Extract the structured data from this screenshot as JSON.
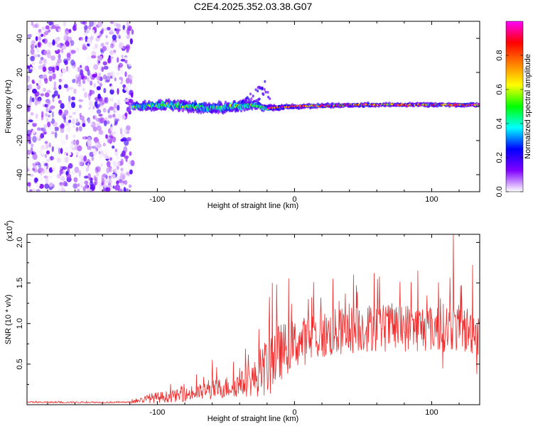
{
  "chart_data": [
    {
      "type": "heatmap",
      "title": "C2E4.2025.352.03.38.G07",
      "xlabel": "Height of straight line (km)",
      "ylabel": "Frequency (Hz)",
      "xlim": [
        -195,
        135
      ],
      "ylim": [
        -50,
        50
      ],
      "xticks": [
        -100,
        0,
        100
      ],
      "xtick_labels": [
        "-100",
        "0",
        "100"
      ],
      "yticks": [
        -40,
        -20,
        0,
        20,
        40
      ],
      "ytick_labels": [
        "-40",
        "-20",
        "0",
        "20",
        "40"
      ],
      "noise_region_x": [
        -195,
        -118
      ],
      "signal_track": [
        {
          "x": -118,
          "freq": 0,
          "spread": 3.5
        },
        {
          "x": -90,
          "freq": 1,
          "spread": 4.0
        },
        {
          "x": -60,
          "freq": -1,
          "spread": 4.5
        },
        {
          "x": -30,
          "freq": 1,
          "spread": 4.0
        },
        {
          "x": -20,
          "freq": -1,
          "spread": 2.5
        },
        {
          "x": 0,
          "freq": 0,
          "spread": 1.8
        },
        {
          "x": 50,
          "freq": 1,
          "spread": 1.6
        },
        {
          "x": 100,
          "freq": 1,
          "spread": 1.5
        },
        {
          "x": 135,
          "freq": 1,
          "spread": 1.5
        }
      ],
      "colorbar": {
        "label": "Normalized spectral amplitude",
        "range": [
          0,
          1
        ],
        "ticks": [
          0,
          0.2,
          0.4,
          0.6,
          0.8
        ],
        "tick_labels": [
          "0.0",
          "0.2",
          "0.4",
          "0.6",
          "0.8"
        ],
        "colors": [
          "#ffffff",
          "#8000ff",
          "#0000ff",
          "#00ffff",
          "#00ff00",
          "#ffff00",
          "#ff8000",
          "#ff0000",
          "#ff00ff"
        ]
      }
    },
    {
      "type": "line",
      "title": "",
      "xlabel": "Height of straight line (km)",
      "ylabel": "SNR (10 * v/v)",
      "multiplier_label": "(x10",
      "multiplier_exp": "4",
      "multiplier_close": ")",
      "xlim": [
        -195,
        135
      ],
      "ylim": [
        0,
        2.1
      ],
      "xticks": [
        -100,
        0,
        100
      ],
      "xtick_labels": [
        "-100",
        "0",
        "100"
      ],
      "yticks": [
        0.5,
        1.0,
        1.5,
        2.0
      ],
      "ytick_labels": [
        "0.5",
        "1.0",
        "1.5",
        "2.0"
      ],
      "color": "#ee2c2c",
      "envelope": [
        {
          "x": -195,
          "base": 0.03,
          "amp": 0.01
        },
        {
          "x": -120,
          "base": 0.03,
          "amp": 0.01
        },
        {
          "x": -105,
          "base": 0.08,
          "amp": 0.06
        },
        {
          "x": -80,
          "base": 0.12,
          "amp": 0.08
        },
        {
          "x": -60,
          "base": 0.18,
          "amp": 0.12
        },
        {
          "x": -40,
          "base": 0.25,
          "amp": 0.15
        },
        {
          "x": -25,
          "base": 0.35,
          "amp": 0.25
        },
        {
          "x": -18,
          "base": 0.55,
          "amp": 0.45
        },
        {
          "x": -10,
          "base": 0.65,
          "amp": 0.35
        },
        {
          "x": 0,
          "base": 0.75,
          "amp": 0.3
        },
        {
          "x": 20,
          "base": 0.85,
          "amp": 0.3
        },
        {
          "x": 50,
          "base": 0.95,
          "amp": 0.3
        },
        {
          "x": 80,
          "base": 0.95,
          "amp": 0.3
        },
        {
          "x": 110,
          "base": 0.95,
          "amp": 0.3
        },
        {
          "x": 135,
          "base": 0.9,
          "amp": 0.3
        }
      ],
      "spikes": [
        {
          "x": -82,
          "y": 0.22
        },
        {
          "x": -60,
          "y": 0.55
        },
        {
          "x": -40,
          "y": 0.45
        },
        {
          "x": -25,
          "y": 0.68
        },
        {
          "x": -16,
          "y": 1.5
        },
        {
          "x": -13,
          "y": 1.48
        },
        {
          "x": 10,
          "y": 1.3
        },
        {
          "x": 28,
          "y": 1.55
        },
        {
          "x": 43,
          "y": 1.6
        },
        {
          "x": 58,
          "y": 1.62
        },
        {
          "x": 90,
          "y": 1.65
        },
        {
          "x": 116,
          "y": 2.1
        },
        {
          "x": 130,
          "y": 1.72
        },
        {
          "x": 135,
          "y": 1.72
        }
      ],
      "dips": [
        {
          "x": 108,
          "y": 0.45
        },
        {
          "x": 133,
          "y": 0.38
        }
      ]
    }
  ]
}
